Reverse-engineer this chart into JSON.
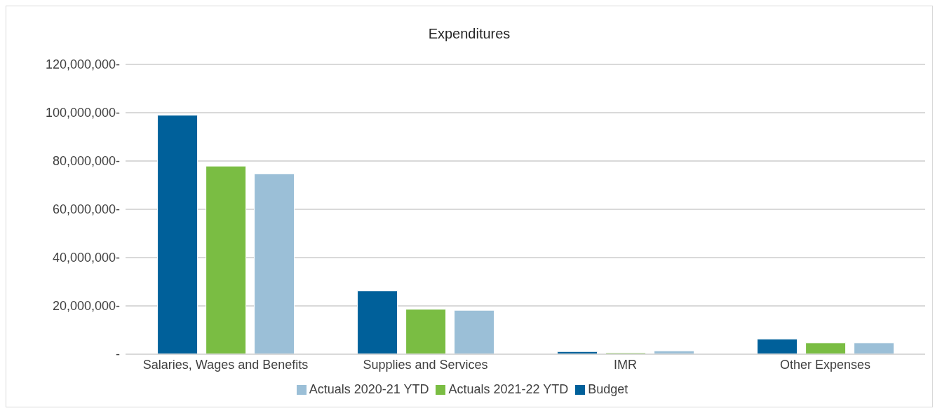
{
  "chart_data": {
    "type": "bar",
    "title": "Expenditures",
    "categories": [
      "Salaries, Wages and Benefits",
      "Supplies and Services",
      "IMR",
      "Other Expenses"
    ],
    "series": [
      {
        "name": "Budget",
        "color": "#00609a",
        "values": [
          99000000,
          26200000,
          1100000,
          6300000
        ]
      },
      {
        "name": "Actuals 2021-22 YTD",
        "color": "#7abd43",
        "values": [
          77900000,
          18600000,
          600000,
          4700000
        ]
      },
      {
        "name": "Actuals 2020-21 YTD",
        "color": "#9bbfd7",
        "values": [
          74700000,
          18200000,
          1400000,
          4700000
        ]
      }
    ],
    "ylim": [
      0,
      120000000
    ],
    "yticks": [
      {
        "value": 0,
        "label": "-"
      },
      {
        "value": 20000000,
        "label": "20,000,000-"
      },
      {
        "value": 40000000,
        "label": "40,000,000-"
      },
      {
        "value": 60000000,
        "label": "60,000,000-"
      },
      {
        "value": 80000000,
        "label": "80,000,000-"
      },
      {
        "value": 100000000,
        "label": "100,000,000-"
      },
      {
        "value": 120000000,
        "label": "120,000,000-"
      }
    ],
    "grid": "y",
    "legend": "bottom"
  }
}
